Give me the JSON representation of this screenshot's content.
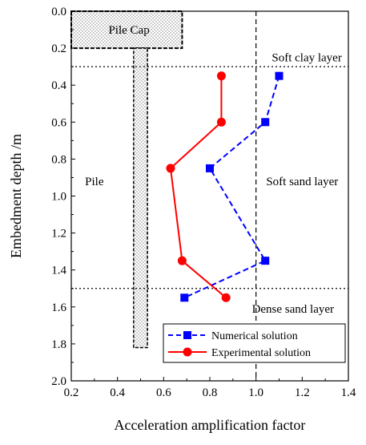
{
  "chart_data": {
    "type": "line",
    "xlabel": "Acceleration amplification factor",
    "ylabel": "Embedment depth /m",
    "xlim": [
      0.2,
      1.4
    ],
    "ylim": [
      0.0,
      2.0
    ],
    "y_inverted": true,
    "x_ticks": [
      "0.2",
      "0.4",
      "0.6",
      "0.8",
      "1.0",
      "1.2",
      "1.4"
    ],
    "y_ticks": [
      "0.0",
      "0.2",
      "0.4",
      "0.6",
      "0.8",
      "1.0",
      "1.2",
      "1.4",
      "1.6",
      "1.8",
      "2.0"
    ],
    "grid": false,
    "legend_position": "bottom-right",
    "series": [
      {
        "name": "Numerical solution",
        "color": "#0000ff",
        "line_style": "dashed",
        "marker": "square",
        "x": [
          1.1,
          1.04,
          0.8,
          1.04,
          0.69
        ],
        "y": [
          0.35,
          0.6,
          0.85,
          1.35,
          1.55
        ]
      },
      {
        "name": "Experimental solution",
        "color": "#ff0000",
        "line_style": "solid",
        "marker": "circle",
        "x": [
          0.85,
          0.85,
          0.63,
          0.68,
          0.87
        ],
        "y": [
          0.35,
          0.6,
          0.85,
          1.35,
          1.55
        ]
      }
    ],
    "reference_lines": {
      "horizontal_dotted_depths": [
        0.3,
        1.5
      ],
      "vertical_dashed_x": 1.0
    },
    "pile_cap": {
      "label": "Pile Cap",
      "x_range": [
        0.2,
        0.68
      ],
      "depth_range": [
        0.0,
        0.2
      ]
    },
    "pile": {
      "label": "Pile",
      "x_range": [
        0.47,
        0.53
      ],
      "depth_range": [
        0.2,
        1.82
      ]
    },
    "annotations": [
      "Soft clay layer",
      "Soft sand layer",
      "Dense sand layer"
    ]
  }
}
